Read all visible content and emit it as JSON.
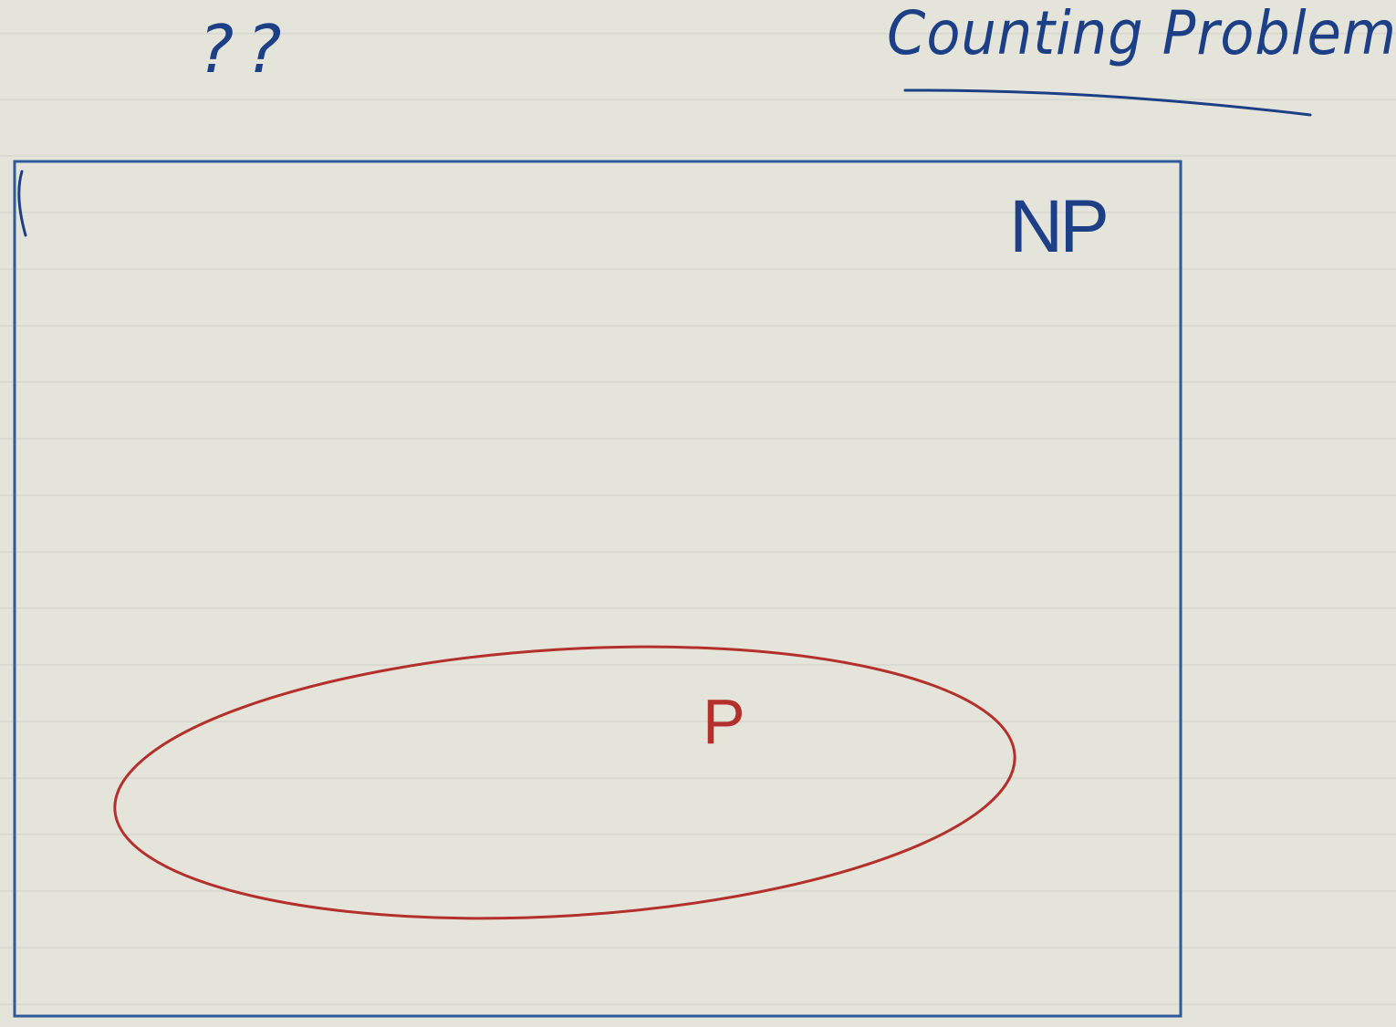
{
  "header": {
    "question_marks": "??",
    "title": "Counting Problems"
  },
  "diagram": {
    "outer_set_label": "NP",
    "inner_set_label": "P"
  },
  "colors": {
    "blue_ink": "#1d3f86",
    "red_ink": "#b3302c",
    "paper": "#e5e4da",
    "rule_line": "#d8d9d0"
  }
}
